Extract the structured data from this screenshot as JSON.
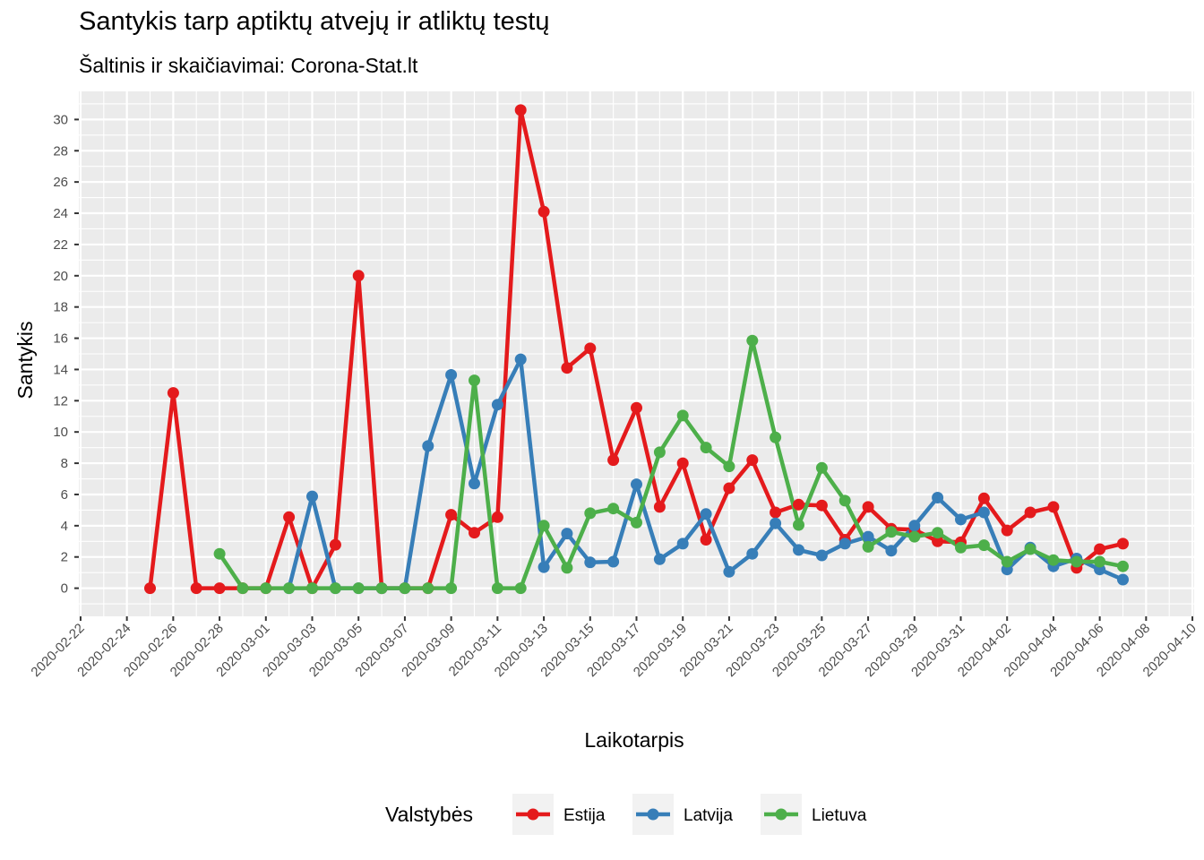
{
  "chart_data": {
    "type": "line",
    "title": "Santykis tarp aptiktų atvejų ir atliktų testų",
    "subtitle": "Šaltinis ir skaičiavimai: Corona-Stat.lt",
    "xlabel": "Laikotarpis",
    "ylabel": "Santykis",
    "ylim": [
      -1.8,
      31.8
    ],
    "xlim": [
      "2020-02-22",
      "2020-04-10"
    ],
    "y_ticks": [
      0,
      2,
      4,
      6,
      8,
      10,
      12,
      14,
      16,
      18,
      20,
      22,
      24,
      26,
      28,
      30
    ],
    "x_ticks": [
      "2020-02-22",
      "2020-02-24",
      "2020-02-26",
      "2020-02-28",
      "2020-03-01",
      "2020-03-03",
      "2020-03-05",
      "2020-03-07",
      "2020-03-09",
      "2020-03-11",
      "2020-03-13",
      "2020-03-15",
      "2020-03-17",
      "2020-03-19",
      "2020-03-21",
      "2020-03-23",
      "2020-03-25",
      "2020-03-27",
      "2020-03-29",
      "2020-03-31",
      "2020-04-02",
      "2020-04-04",
      "2020-04-06",
      "2020-04-08",
      "2020-04-10"
    ],
    "grid": true,
    "legend": {
      "title": "Valstybės",
      "position": "bottom"
    },
    "series": [
      {
        "name": "Estija",
        "color": "#e41a1c",
        "x": [
          "2020-02-25",
          "2020-02-26",
          "2020-02-27",
          "2020-02-28",
          "2020-02-29",
          "2020-03-01",
          "2020-03-02",
          "2020-03-03",
          "2020-03-04",
          "2020-03-05",
          "2020-03-06",
          "2020-03-07",
          "2020-03-08",
          "2020-03-09",
          "2020-03-10",
          "2020-03-11",
          "2020-03-12",
          "2020-03-13",
          "2020-03-14",
          "2020-03-15",
          "2020-03-16",
          "2020-03-17",
          "2020-03-18",
          "2020-03-19",
          "2020-03-20",
          "2020-03-21",
          "2020-03-22",
          "2020-03-23",
          "2020-03-24",
          "2020-03-25",
          "2020-03-26",
          "2020-03-27",
          "2020-03-28",
          "2020-03-29",
          "2020-03-30",
          "2020-03-31",
          "2020-04-01",
          "2020-04-02",
          "2020-04-03",
          "2020-04-04",
          "2020-04-05",
          "2020-04-06",
          "2020-04-07"
        ],
        "values": [
          0,
          12.5,
          0,
          0,
          0,
          0,
          4.55,
          0,
          2.78,
          20.0,
          0,
          0,
          0,
          4.7,
          3.55,
          4.55,
          30.6,
          24.1,
          14.1,
          15.35,
          8.2,
          11.55,
          5.2,
          8.0,
          3.1,
          6.4,
          8.2,
          4.85,
          5.35,
          5.3,
          3.1,
          5.2,
          3.8,
          3.75,
          3.0,
          2.95,
          5.75,
          3.7,
          4.85,
          5.2,
          1.3,
          2.5,
          2.85
        ]
      },
      {
        "name": "Latvija",
        "color": "#377eb8",
        "x": [
          "2020-03-02",
          "2020-03-03",
          "2020-03-04",
          "2020-03-05",
          "2020-03-06",
          "2020-03-07",
          "2020-03-08",
          "2020-03-09",
          "2020-03-10",
          "2020-03-11",
          "2020-03-12",
          "2020-03-13",
          "2020-03-14",
          "2020-03-15",
          "2020-03-16",
          "2020-03-17",
          "2020-03-18",
          "2020-03-19",
          "2020-03-20",
          "2020-03-21",
          "2020-03-22",
          "2020-03-23",
          "2020-03-24",
          "2020-03-25",
          "2020-03-26",
          "2020-03-27",
          "2020-03-28",
          "2020-03-29",
          "2020-03-30",
          "2020-03-31",
          "2020-04-01",
          "2020-04-02",
          "2020-04-03",
          "2020-04-04",
          "2020-04-05",
          "2020-04-06",
          "2020-04-07"
        ],
        "values": [
          0,
          5.88,
          0,
          0,
          0,
          0,
          9.1,
          13.65,
          6.7,
          11.75,
          14.65,
          1.35,
          3.5,
          1.65,
          1.7,
          6.65,
          1.85,
          2.85,
          4.75,
          1.05,
          2.2,
          4.15,
          2.45,
          2.1,
          2.85,
          3.3,
          2.4,
          4.0,
          5.8,
          4.4,
          4.85,
          1.2,
          2.6,
          1.4,
          1.9,
          1.2,
          0.55
        ]
      },
      {
        "name": "Lietuva",
        "color": "#4daf4a",
        "x": [
          "2020-02-28",
          "2020-02-29",
          "2020-03-01",
          "2020-03-02",
          "2020-03-03",
          "2020-03-04",
          "2020-03-05",
          "2020-03-06",
          "2020-03-07",
          "2020-03-08",
          "2020-03-09",
          "2020-03-10",
          "2020-03-11",
          "2020-03-12",
          "2020-03-13",
          "2020-03-14",
          "2020-03-15",
          "2020-03-16",
          "2020-03-17",
          "2020-03-18",
          "2020-03-19",
          "2020-03-20",
          "2020-03-21",
          "2020-03-22",
          "2020-03-23",
          "2020-03-24",
          "2020-03-25",
          "2020-03-26",
          "2020-03-27",
          "2020-03-28",
          "2020-03-29",
          "2020-03-30",
          "2020-03-31",
          "2020-04-01",
          "2020-04-02",
          "2020-04-03",
          "2020-04-04",
          "2020-04-05",
          "2020-04-06",
          "2020-04-07"
        ],
        "values": [
          2.2,
          0,
          0,
          0,
          0,
          0,
          0,
          0,
          0,
          0,
          0,
          13.3,
          0,
          0,
          4.0,
          1.3,
          4.8,
          5.1,
          4.2,
          8.7,
          11.05,
          9.0,
          7.8,
          15.85,
          9.65,
          4.05,
          7.7,
          5.6,
          2.65,
          3.6,
          3.3,
          3.55,
          2.6,
          2.75,
          1.7,
          2.5,
          1.8,
          1.7,
          1.7,
          1.4
        ]
      }
    ]
  }
}
